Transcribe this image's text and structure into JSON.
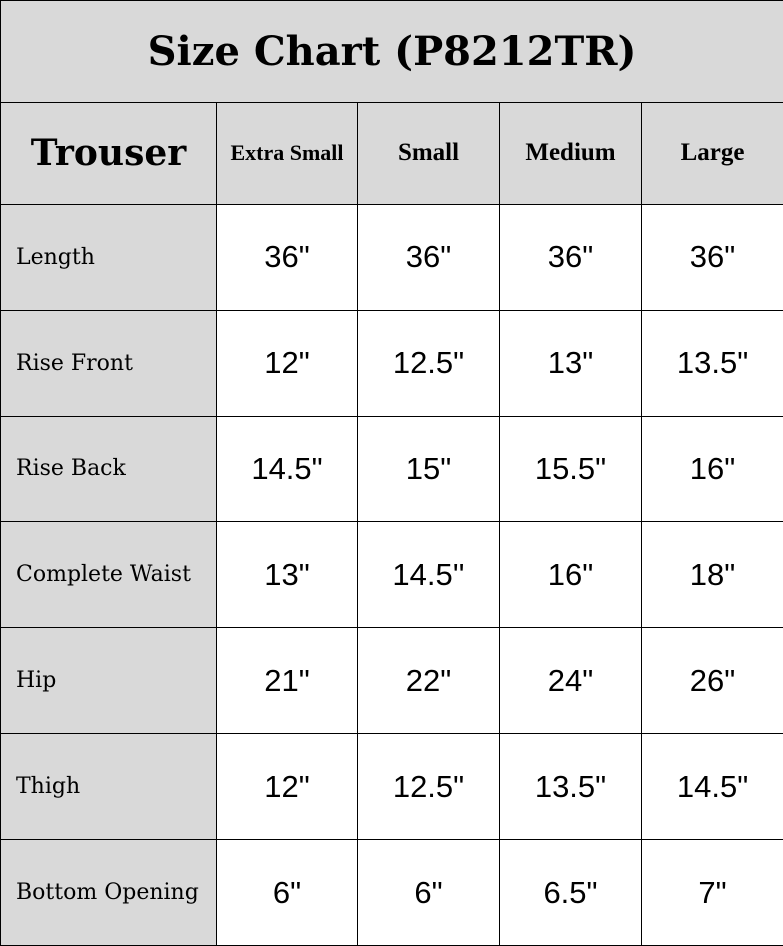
{
  "title": "Size Chart (P8212TR)",
  "header": {
    "corner": "Trouser",
    "sizes": [
      "Extra Small",
      "Small",
      "Medium",
      "Large"
    ]
  },
  "rows": [
    {
      "label": "Length",
      "values": [
        "36\"",
        "36\"",
        "36\"",
        "36\""
      ]
    },
    {
      "label": "Rise Front",
      "values": [
        "12\"",
        "12.5\"",
        "13\"",
        "13.5\""
      ]
    },
    {
      "label": "Rise Back",
      "values": [
        "14.5\"",
        "15\"",
        "15.5\"",
        "16\""
      ]
    },
    {
      "label": "Complete Waist",
      "values": [
        "13\"",
        "14.5''",
        "16\"",
        "18\""
      ]
    },
    {
      "label": "Hip",
      "values": [
        "21\"",
        "22\"",
        "24\"",
        "26\""
      ]
    },
    {
      "label": "Thigh",
      "values": [
        "12\"",
        "12.5\"",
        "13.5\"",
        "14.5\""
      ]
    },
    {
      "label": "Bottom Opening",
      "values": [
        "6\"",
        "6\"",
        "6.5\"",
        "7\""
      ]
    }
  ],
  "colors": {
    "header_bg": "#d9d9d9",
    "cell_bg": "#ffffff",
    "border": "#000000"
  }
}
